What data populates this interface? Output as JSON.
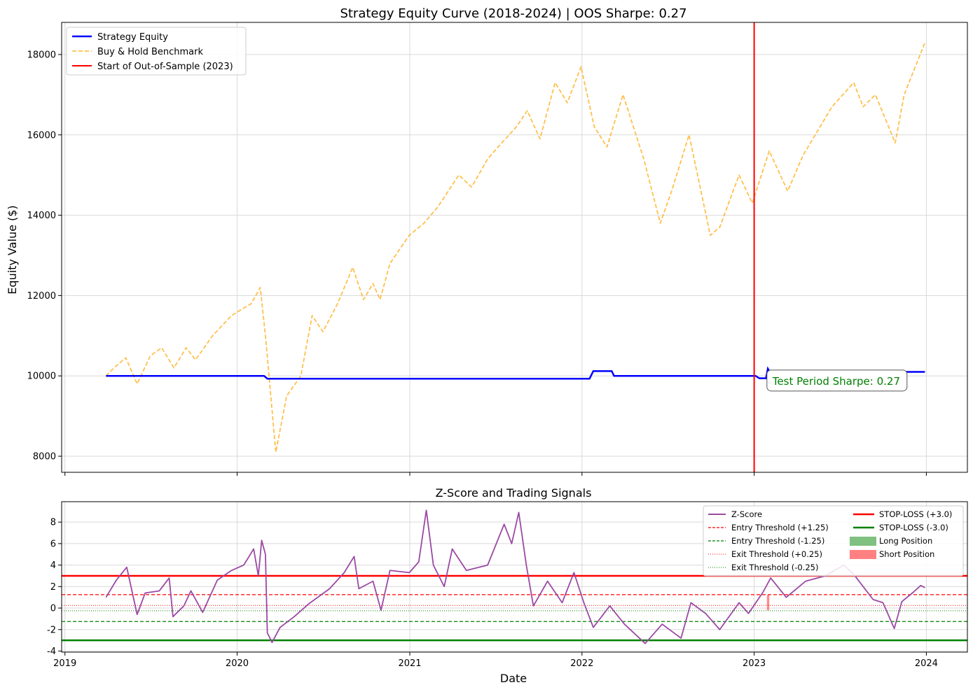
{
  "chart_data": [
    {
      "type": "line",
      "title": "Strategy Equity Curve (2018-2024) | OOS Sharpe: 0.27",
      "xlabel": "",
      "ylabel": "Equity Value ($)",
      "xlim": [
        "2018-12-25",
        "2024-03-28"
      ],
      "ylim": [
        7600,
        18800
      ],
      "yticks": [
        8000,
        10000,
        12000,
        14000,
        16000,
        18000
      ],
      "grid": true,
      "legend_position": "top-left",
      "series": [
        {
          "name": "Strategy Equity",
          "color": "#0000ff",
          "style": "solid",
          "points": [
            [
              "2019-03-29",
              10000
            ],
            [
              "2020-02-27",
              10000
            ],
            [
              "2020-03-05",
              9930
            ],
            [
              "2022-01-17",
              9930
            ],
            [
              "2022-01-25",
              10120
            ],
            [
              "2022-03-05",
              10120
            ],
            [
              "2022-03-10",
              10000
            ],
            [
              "2023-01-04",
              10000
            ],
            [
              "2023-01-12",
              9940
            ],
            [
              "2023-01-26",
              9940
            ],
            [
              "2023-01-30",
              10180
            ],
            [
              "2023-02-04",
              10080
            ],
            [
              "2023-11-05",
              10080
            ],
            [
              "2023-11-10",
              10100
            ],
            [
              "2023-12-29",
              10100
            ]
          ]
        },
        {
          "name": "Buy & Hold Benchmark",
          "color": "#ffa500",
          "style": "dashed",
          "points": [
            [
              "2019-03-29",
              10000
            ],
            [
              "2019-04-15",
              10200
            ],
            [
              "2019-05-10",
              10450
            ],
            [
              "2019-06-03",
              9800
            ],
            [
              "2019-07-01",
              10500
            ],
            [
              "2019-07-25",
              10700
            ],
            [
              "2019-08-20",
              10200
            ],
            [
              "2019-09-15",
              10700
            ],
            [
              "2019-10-05",
              10400
            ],
            [
              "2019-11-10",
              11000
            ],
            [
              "2019-12-20",
              11500
            ],
            [
              "2020-01-31",
              11800
            ],
            [
              "2020-02-19",
              12200
            ],
            [
              "2020-03-01",
              11000
            ],
            [
              "2020-03-23",
              8100
            ],
            [
              "2020-04-15",
              9500
            ],
            [
              "2020-05-15",
              10000
            ],
            [
              "2020-06-08",
              11500
            ],
            [
              "2020-07-01",
              11100
            ],
            [
              "2020-08-01",
              11800
            ],
            [
              "2020-09-02",
              12700
            ],
            [
              "2020-09-25",
              11900
            ],
            [
              "2020-10-15",
              12300
            ],
            [
              "2020-10-30",
              11900
            ],
            [
              "2020-11-20",
              12800
            ],
            [
              "2020-12-31",
              13500
            ],
            [
              "2021-01-31",
              13800
            ],
            [
              "2021-03-01",
              14200
            ],
            [
              "2021-04-15",
              15000
            ],
            [
              "2021-05-12",
              14700
            ],
            [
              "2021-06-15",
              15400
            ],
            [
              "2021-07-15",
              15800
            ],
            [
              "2021-08-15",
              16200
            ],
            [
              "2021-09-07",
              16600
            ],
            [
              "2021-10-04",
              15900
            ],
            [
              "2021-11-05",
              17300
            ],
            [
              "2021-12-01",
              16800
            ],
            [
              "2021-12-30",
              17700
            ],
            [
              "2022-01-27",
              16200
            ],
            [
              "2022-02-23",
              15700
            ],
            [
              "2022-03-29",
              17000
            ],
            [
              "2022-05-12",
              15400
            ],
            [
              "2022-06-16",
              13800
            ],
            [
              "2022-07-10",
              14600
            ],
            [
              "2022-08-16",
              16000
            ],
            [
              "2022-09-30",
              13500
            ],
            [
              "2022-10-20",
              13700
            ],
            [
              "2022-11-30",
              15000
            ],
            [
              "2022-12-28",
              14300
            ],
            [
              "2023-02-02",
              15600
            ],
            [
              "2023-03-13",
              14600
            ],
            [
              "2023-04-15",
              15500
            ],
            [
              "2023-06-15",
              16700
            ],
            [
              "2023-07-31",
              17300
            ],
            [
              "2023-08-20",
              16700
            ],
            [
              "2023-09-15",
              17000
            ],
            [
              "2023-10-27",
              15800
            ],
            [
              "2023-11-15",
              17000
            ],
            [
              "2023-12-29",
              18300
            ]
          ]
        }
      ],
      "vline": {
        "name": "Start of Out-of-Sample (2023)",
        "x": "2023-01-01",
        "color": "#ff0000"
      },
      "annotation": {
        "text": "Test Period Sharpe: 0.27",
        "x": "2023-01-31",
        "y": 9850,
        "color": "#008000"
      }
    },
    {
      "type": "line",
      "title": "Z-Score and Trading Signals",
      "xlabel": "Date",
      "ylabel": "",
      "xlim": [
        "2018-12-25",
        "2024-03-28"
      ],
      "ylim": [
        -4.1,
        9.9
      ],
      "xticks": [
        "2019",
        "2020",
        "2021",
        "2022",
        "2023",
        "2024"
      ],
      "yticks": [
        -4,
        -2,
        0,
        2,
        4,
        6,
        8
      ],
      "grid": true,
      "legend_position": "top-right",
      "series": [
        {
          "name": "Z-Score",
          "color": "#9b4aa3",
          "points": [
            [
              "2019-03-29",
              1.0
            ],
            [
              "2019-04-20",
              2.6
            ],
            [
              "2019-05-12",
              3.8
            ],
            [
              "2019-06-03",
              -0.6
            ],
            [
              "2019-06-20",
              1.4
            ],
            [
              "2019-07-20",
              1.6
            ],
            [
              "2019-08-10",
              2.8
            ],
            [
              "2019-08-18",
              -0.8
            ],
            [
              "2019-09-10",
              0.2
            ],
            [
              "2019-09-25",
              1.6
            ],
            [
              "2019-10-20",
              -0.4
            ],
            [
              "2019-11-20",
              2.6
            ],
            [
              "2019-12-20",
              3.5
            ],
            [
              "2020-01-15",
              4.0
            ],
            [
              "2020-02-05",
              5.5
            ],
            [
              "2020-02-15",
              3.0
            ],
            [
              "2020-02-22",
              6.3
            ],
            [
              "2020-03-01",
              5.0
            ],
            [
              "2020-03-05",
              -2.3
            ],
            [
              "2020-03-15",
              -3.2
            ],
            [
              "2020-04-01",
              -1.8
            ],
            [
              "2020-05-01",
              -0.8
            ],
            [
              "2020-06-01",
              0.4
            ],
            [
              "2020-07-15",
              1.8
            ],
            [
              "2020-08-15",
              3.3
            ],
            [
              "2020-09-05",
              4.8
            ],
            [
              "2020-09-15",
              1.8
            ],
            [
              "2020-10-15",
              2.5
            ],
            [
              "2020-11-01",
              -0.2
            ],
            [
              "2020-11-20",
              3.5
            ],
            [
              "2020-12-31",
              3.3
            ],
            [
              "2021-01-20",
              4.3
            ],
            [
              "2021-02-05",
              9.1
            ],
            [
              "2021-02-20",
              4.0
            ],
            [
              "2021-03-15",
              2.0
            ],
            [
              "2021-04-01",
              5.5
            ],
            [
              "2021-05-01",
              3.5
            ],
            [
              "2021-06-15",
              4.0
            ],
            [
              "2021-07-20",
              7.8
            ],
            [
              "2021-08-05",
              6.0
            ],
            [
              "2021-08-20",
              8.9
            ],
            [
              "2021-09-05",
              4.0
            ],
            [
              "2021-09-20",
              0.2
            ],
            [
              "2021-10-20",
              2.5
            ],
            [
              "2021-11-20",
              0.5
            ],
            [
              "2021-12-15",
              3.3
            ],
            [
              "2022-01-05",
              0.5
            ],
            [
              "2022-01-25",
              -1.8
            ],
            [
              "2022-03-01",
              0.2
            ],
            [
              "2022-04-01",
              -1.5
            ],
            [
              "2022-05-15",
              -3.3
            ],
            [
              "2022-06-20",
              -1.5
            ],
            [
              "2022-07-30",
              -2.8
            ],
            [
              "2022-08-20",
              0.5
            ],
            [
              "2022-09-20",
              -0.5
            ],
            [
              "2022-10-20",
              -2.0
            ],
            [
              "2022-11-30",
              0.5
            ],
            [
              "2022-12-20",
              -0.5
            ],
            [
              "2023-01-20",
              1.5
            ],
            [
              "2023-02-05",
              2.8
            ],
            [
              "2023-03-10",
              1.0
            ],
            [
              "2023-04-20",
              2.5
            ],
            [
              "2023-06-01",
              3.0
            ],
            [
              "2023-07-10",
              4.0
            ],
            [
              "2023-07-30",
              3.2
            ],
            [
              "2023-08-20",
              2.0
            ],
            [
              "2023-09-10",
              0.8
            ],
            [
              "2023-10-01",
              0.5
            ],
            [
              "2023-10-25",
              -1.9
            ],
            [
              "2023-11-10",
              0.6
            ],
            [
              "2023-12-05",
              1.5
            ],
            [
              "2023-12-20",
              2.1
            ],
            [
              "2023-12-29",
              1.9
            ]
          ]
        },
        {
          "name": "Entry Threshold (+1.25)",
          "value": 1.25,
          "color": "#ff0000",
          "style": "dashed"
        },
        {
          "name": "Entry Threshold (-1.25)",
          "value": -1.25,
          "color": "#008000",
          "style": "dashed"
        },
        {
          "name": "Exit Threshold (+0.25)",
          "value": 0.25,
          "color": "#ff0000",
          "style": "dotted"
        },
        {
          "name": "Exit Threshold (-0.25)",
          "value": -0.25,
          "color": "#008000",
          "style": "dotted"
        },
        {
          "name": "STOP-LOSS (+3.0)",
          "value": 3.0,
          "color": "#ff0000",
          "style": "solid"
        },
        {
          "name": "STOP-LOSS (-3.0)",
          "value": -3.0,
          "color": "#008000",
          "style": "solid"
        }
      ],
      "position_legend": [
        {
          "name": "Long Position",
          "color": "#80c080"
        },
        {
          "name": "Short Position",
          "color": "#ff8080"
        }
      ],
      "positions": [
        {
          "type": "short",
          "start": "2023-01-28",
          "end": "2023-02-02",
          "low": -0.2,
          "high": 1.2
        }
      ]
    }
  ]
}
